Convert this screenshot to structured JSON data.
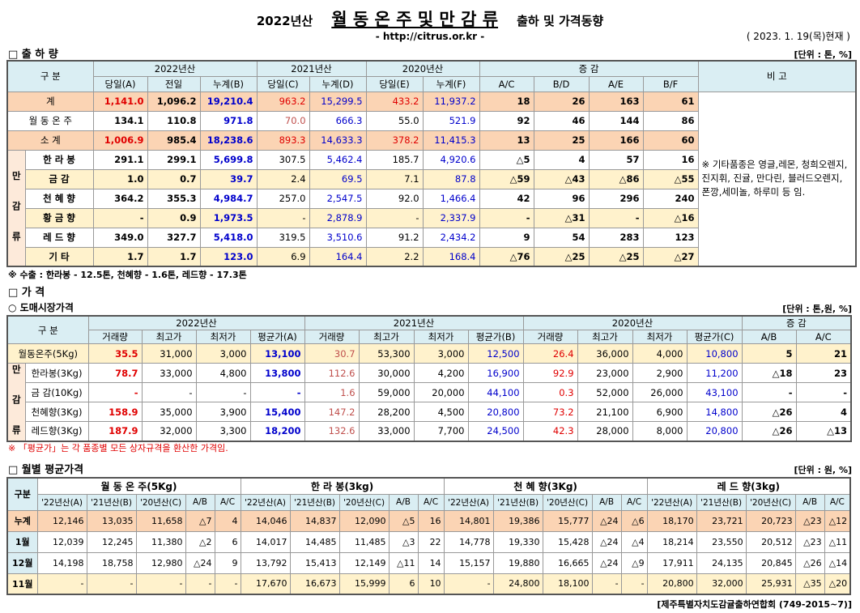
{
  "header": {
    "title_year": "2022년산",
    "title_main": "월 동 온 주 및 만 감 류",
    "title_sub": "출하 및 가격동향",
    "url": "- http://citrus.or.kr -",
    "date": "( 2023. 1. 19(목)현재 )"
  },
  "shipment": {
    "heading": "□ 출 하 량",
    "unit": "[단위 : 톤, %]",
    "corner": "구 분",
    "groups": [
      "2022년산",
      "2021년산",
      "2020년산",
      "증 감"
    ],
    "remark_header": "비 고",
    "columns": [
      "당일(A)",
      "전일",
      "누계(B)",
      "당일(C)",
      "누계(D)",
      "당일(E)",
      "누계(F)",
      "A/C",
      "B/D",
      "A/E",
      "B/F"
    ],
    "rows": [
      {
        "label": "계",
        "values": [
          "1,141.0",
          "1,096.2",
          "19,210.4",
          "963.2",
          "15,299.5",
          "433.2",
          "11,937.2",
          "18",
          "26",
          "163",
          "61"
        ]
      },
      {
        "label": "월 동 온 주",
        "values": [
          "134.1",
          "110.8",
          "971.8",
          "70.0",
          "666.3",
          "55.0",
          "521.9",
          "92",
          "46",
          "144",
          "86"
        ]
      },
      {
        "label": "소 계",
        "values": [
          "1,006.9",
          "985.4",
          "18,238.6",
          "893.3",
          "14,633.3",
          "378.2",
          "11,415.3",
          "13",
          "25",
          "166",
          "60"
        ]
      }
    ],
    "group_label": "만 감 류",
    "group_rows": [
      {
        "label": "한 라 봉",
        "values": [
          "291.1",
          "299.1",
          "5,699.8",
          "307.5",
          "5,462.4",
          "185.7",
          "4,920.6",
          "△5",
          "4",
          "57",
          "16"
        ]
      },
      {
        "label": "금 감",
        "values": [
          "1.0",
          "0.7",
          "39.7",
          "2.4",
          "69.5",
          "7.1",
          "87.8",
          "△59",
          "△43",
          "△86",
          "△55"
        ]
      },
      {
        "label": "천 혜 향",
        "values": [
          "364.2",
          "355.3",
          "4,984.7",
          "257.0",
          "2,547.5",
          "92.0",
          "1,466.4",
          "42",
          "96",
          "296",
          "240"
        ]
      },
      {
        "label": "황 금 향",
        "values": [
          "-",
          "0.9",
          "1,973.5",
          "-",
          "2,878.9",
          "-",
          "2,337.9",
          "-",
          "△31",
          "-",
          "△16"
        ]
      },
      {
        "label": "레 드 향",
        "values": [
          "349.0",
          "327.7",
          "5,418.0",
          "319.5",
          "3,510.6",
          "91.2",
          "2,434.2",
          "9",
          "54",
          "283",
          "123"
        ]
      },
      {
        "label": "기 타",
        "values": [
          "1.7",
          "1.7",
          "123.0",
          "6.9",
          "164.4",
          "2.2",
          "168.4",
          "△76",
          "△25",
          "△25",
          "△27"
        ]
      }
    ],
    "remark": "※ 기타품종은 영글,레몬, 청희오렌지, 진지휘, 진귤, 만다린, 블러드오렌지, 폰깡,세미놀, 하루미 등 임.",
    "note": "※ 수출 : 한라봉 - 12.5톤, 천혜향 - 1.6톤, 레드향 - 17.3톤"
  },
  "price": {
    "heading": "□ 가 격",
    "subheading": "○ 도매시장가격",
    "unit": "[단위 : 톤,원, %]",
    "corner": "구 분",
    "groups": [
      "2022년산",
      "2021년산",
      "2020년산",
      "증 감"
    ],
    "columns": [
      "거래량",
      "최고가",
      "최저가",
      "평균가(A)",
      "거래량",
      "최고가",
      "최저가",
      "평균가(B)",
      "거래량",
      "최고가",
      "최저가",
      "평균가(C)",
      "A/B",
      "A/C"
    ],
    "rows": [
      {
        "label": "월동온주(5Kg)",
        "values": [
          "35.5",
          "31,000",
          "3,000",
          "13,100",
          "30.7",
          "53,300",
          "3,000",
          "12,500",
          "26.4",
          "36,000",
          "4,000",
          "10,800",
          "5",
          "21"
        ]
      }
    ],
    "group_label": "만 감 류",
    "group_rows": [
      {
        "label": "한라봉(3Kg)",
        "values": [
          "78.7",
          "33,000",
          "4,800",
          "13,800",
          "112.6",
          "30,000",
          "4,200",
          "16,900",
          "92.9",
          "23,000",
          "2,900",
          "11,200",
          "△18",
          "23"
        ]
      },
      {
        "label": "금 감(10Kg)",
        "values": [
          "-",
          "-",
          "-",
          "-",
          "1.6",
          "59,000",
          "20,000",
          "44,100",
          "0.3",
          "52,000",
          "26,000",
          "43,100",
          "-",
          "-"
        ]
      },
      {
        "label": "천혜향(3Kg)",
        "values": [
          "158.9",
          "35,000",
          "3,900",
          "15,400",
          "147.2",
          "28,200",
          "4,500",
          "20,800",
          "73.2",
          "21,100",
          "6,900",
          "14,800",
          "△26",
          "4"
        ]
      },
      {
        "label": "레드향(3Kg)",
        "values": [
          "187.9",
          "32,000",
          "3,300",
          "18,200",
          "132.6",
          "33,000",
          "7,700",
          "24,500",
          "42.3",
          "28,000",
          "8,000",
          "20,800",
          "△26",
          "△13"
        ]
      }
    ],
    "note": "※ 「평균가」는 각 품종별 모든 상자규격을 환산한 가격임."
  },
  "monthly": {
    "heading": "□ 월별 평균가격",
    "unit": "[단위 : 원, %]",
    "corner": "구분",
    "groups": [
      "월 동 온 주(5Kg)",
      "한 라 봉(3kg)",
      "천 혜 향(3Kg)",
      "레 드 향(3kg)"
    ],
    "columns": [
      "'22년산(A)",
      "'21년산(B)",
      "'20년산(C)",
      "A/B",
      "A/C"
    ],
    "rows": [
      {
        "label": "누계",
        "values": [
          "12,146",
          "13,035",
          "11,658",
          "△7",
          "4",
          "14,046",
          "14,837",
          "12,090",
          "△5",
          "16",
          "14,801",
          "19,386",
          "15,777",
          "△24",
          "△6",
          "18,170",
          "23,721",
          "20,723",
          "△23",
          "△12"
        ]
      },
      {
        "label": "1월",
        "values": [
          "12,039",
          "12,245",
          "11,380",
          "△2",
          "6",
          "14,017",
          "14,485",
          "11,485",
          "△3",
          "22",
          "14,778",
          "19,330",
          "15,428",
          "△24",
          "△4",
          "18,214",
          "23,550",
          "20,512",
          "△23",
          "△11"
        ]
      },
      {
        "label": "12월",
        "values": [
          "14,198",
          "18,758",
          "12,980",
          "△24",
          "9",
          "13,792",
          "15,413",
          "12,149",
          "△11",
          "14",
          "15,157",
          "19,880",
          "16,665",
          "△24",
          "△9",
          "17,911",
          "24,135",
          "20,845",
          "△26",
          "△14"
        ]
      },
      {
        "label": "11월",
        "values": [
          "-",
          "-",
          "-",
          "-",
          "-",
          "17,670",
          "16,673",
          "15,999",
          "6",
          "10",
          "-",
          "24,800",
          "18,100",
          "-",
          "-",
          "20,800",
          "32,000",
          "25,931",
          "△35",
          "△20"
        ]
      }
    ]
  },
  "footer": "[제주특별자치도감귤출하연합회 (749-2015~7)]"
}
